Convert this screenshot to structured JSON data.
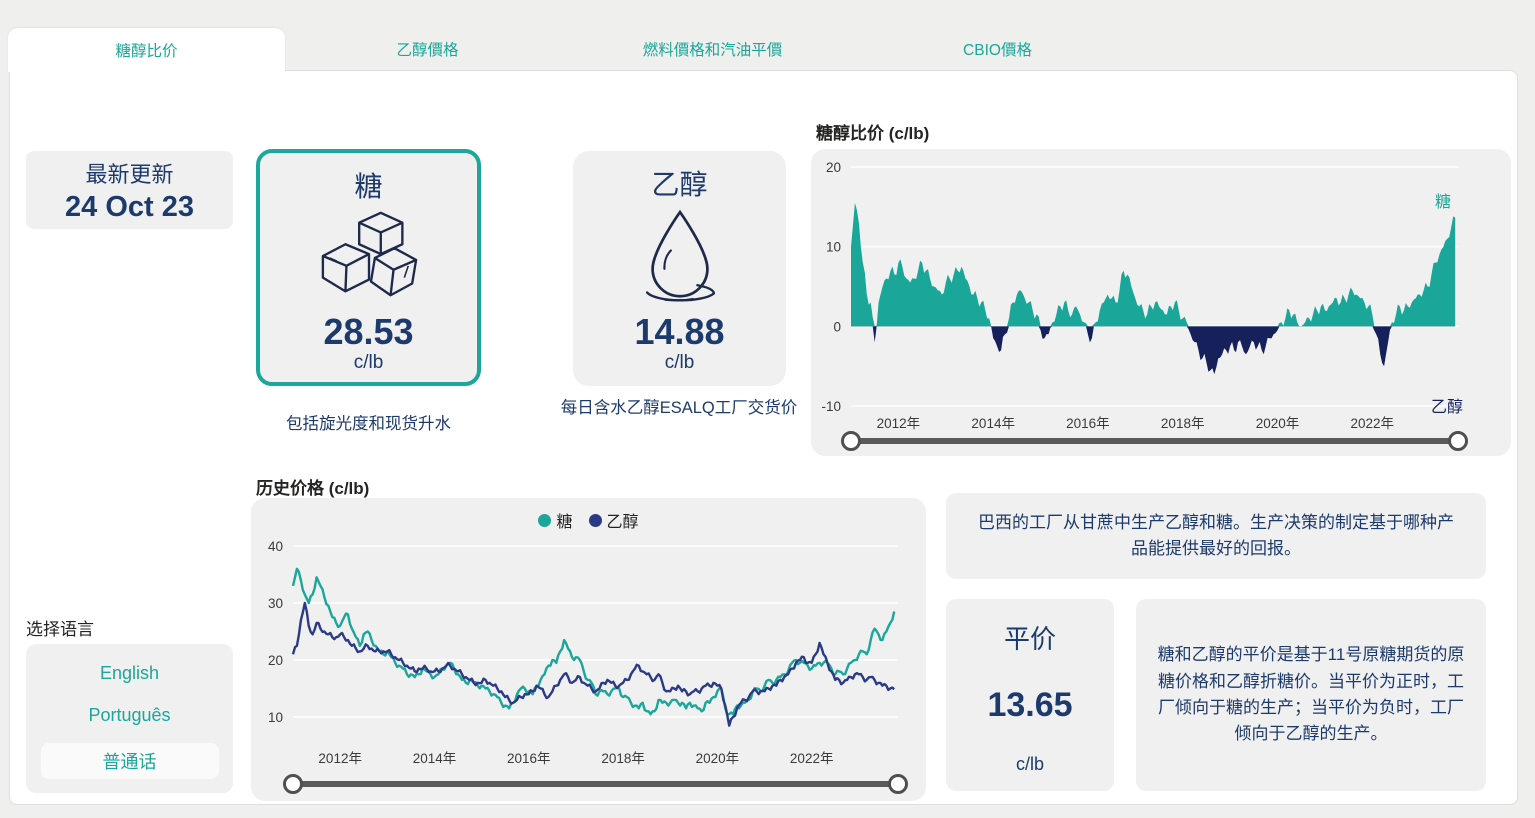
{
  "colors": {
    "teal": "#1AA79A",
    "navy_fill": "#16215C",
    "navy_line": "#2B3A85",
    "text_navy": "#1D3A6D",
    "box_gray": "#F0F0F0"
  },
  "tabs": [
    {
      "label": "糖醇比价",
      "active": true
    },
    {
      "label": "乙醇價格",
      "active": false
    },
    {
      "label": "燃料價格和汽油平價",
      "active": false
    },
    {
      "label": "CBIO價格",
      "active": false
    }
  ],
  "latest_update": {
    "label": "最新更新",
    "date": "24 Oct 23"
  },
  "sugar_card": {
    "title": "糖",
    "value": "28.53",
    "unit": "c/lb",
    "icon": "sugar-cubes-icon",
    "caption": "包括旋光度和现货升水"
  },
  "ethanol_card": {
    "title": "乙醇",
    "value": "14.88",
    "unit": "c/lb",
    "icon": "water-drop-icon",
    "caption": "每日含水乙醇ESALQ工厂交货价"
  },
  "language": {
    "label": "选择语言",
    "options": [
      "English",
      "Português",
      "普通话"
    ],
    "selected": "普通话"
  },
  "info_box_top": "巴西的工厂从甘蔗中生产乙醇和糖。生产决策的制定基于哪种产品能提供最好的回报。",
  "parity_card": {
    "title": "平价",
    "value": "13.65",
    "unit": "c/lb"
  },
  "info_box_bottom": "糖和乙醇的平价是基于11号原糖期货的原糖价格和乙醇折糖价。当平价为正时，工厂倾向于糖的生产；当平价为负时，工厂倾向于乙醇的生产。",
  "chart_data": [
    {
      "type": "area",
      "title": "糖醇比价 (c/lb)",
      "positive_label": "糖",
      "negative_label": "乙醇",
      "positive_color": "#1AA79A",
      "negative_color": "#16215C",
      "frequency": "monthly",
      "x_range": [
        2011.0,
        2023.83
      ],
      "x_ticks": [
        {
          "year": 2012,
          "label": "2012年"
        },
        {
          "year": 2014,
          "label": "2014年"
        },
        {
          "year": 2016,
          "label": "2016年"
        },
        {
          "year": 2018,
          "label": "2018年"
        },
        {
          "year": 2020,
          "label": "2020年"
        },
        {
          "year": 2022,
          "label": "2022年"
        }
      ],
      "y_ticks": [
        20,
        10,
        0,
        -10
      ],
      "ylim": [
        -10,
        20
      ],
      "values": [
        10,
        15.5,
        13,
        8,
        4,
        3,
        -2,
        3,
        5,
        6,
        7,
        6.5,
        8,
        7.5,
        6,
        5.5,
        6,
        7,
        8,
        7,
        6,
        5,
        4.5,
        4,
        5.5,
        6,
        6.5,
        7,
        7.5,
        6,
        5,
        4,
        3.5,
        3,
        2,
        1,
        -1.5,
        -2.5,
        -3,
        -1,
        1,
        3,
        4,
        4.5,
        3.5,
        3,
        2,
        1.5,
        -0.5,
        -1.5,
        -1,
        0.5,
        1.5,
        2.5,
        3,
        2,
        1.5,
        2.5,
        1.5,
        0.5,
        -1,
        -1.5,
        0.5,
        2,
        3,
        4,
        3.5,
        3,
        4.5,
        7,
        6.5,
        5,
        3.5,
        2.5,
        2,
        1.5,
        2.5,
        3,
        2.5,
        2,
        1.5,
        2.5,
        3,
        2,
        1,
        0.5,
        -1,
        -2,
        -3,
        -4,
        -4.5,
        -5.5,
        -6,
        -4,
        -3.5,
        -3,
        -2.5,
        -3,
        -2,
        -2.5,
        -3.5,
        -2.5,
        -2,
        -2.5,
        -3,
        -2.5,
        -1.5,
        -1,
        -0.5,
        0.5,
        1,
        2,
        1.5,
        0.5,
        0,
        0.5,
        1,
        1.5,
        2,
        2.5,
        2,
        2.5,
        3,
        3.5,
        3,
        3.5,
        4,
        4.5,
        4,
        3.5,
        3,
        2.5,
        1.5,
        -1,
        -3.5,
        -5,
        -2,
        0.5,
        1.5,
        2.5,
        2,
        2.5,
        3,
        3.5,
        4,
        4.5,
        5,
        6.5,
        8,
        9,
        10,
        11,
        12.5,
        13.65
      ]
    },
    {
      "type": "line",
      "title": "历史价格 (c/lb)",
      "frequency": "monthly",
      "x_range": [
        2011.0,
        2023.83
      ],
      "x_ticks": [
        {
          "year": 2012,
          "label": "2012年"
        },
        {
          "year": 2014,
          "label": "2014年"
        },
        {
          "year": 2016,
          "label": "2016年"
        },
        {
          "year": 2018,
          "label": "2018年"
        },
        {
          "year": 2020,
          "label": "2020年"
        },
        {
          "year": 2022,
          "label": "2022年"
        }
      ],
      "y_ticks": [
        40,
        30,
        20,
        10
      ],
      "ylim": [
        6,
        43
      ],
      "legend": [
        {
          "label": "糖",
          "color": "#1AA79A"
        },
        {
          "label": "乙醇",
          "color": "#2B3A85"
        }
      ],
      "series": [
        {
          "name": "糖",
          "color": "#1AA79A",
          "values": [
            33,
            36,
            34,
            31.5,
            30,
            31.5,
            34.5,
            33,
            31,
            29.5,
            27.5,
            26.5,
            26,
            27.5,
            28,
            25.5,
            24,
            22.5,
            24.5,
            25,
            23.5,
            22.5,
            21.5,
            21,
            21.5,
            20.5,
            19.5,
            19,
            18.5,
            17.5,
            17.5,
            17,
            17.5,
            18.5,
            18,
            17.5,
            17,
            17.5,
            18.5,
            19,
            19.5,
            18.5,
            17.5,
            16.5,
            16,
            16.5,
            16,
            15.5,
            15.5,
            15,
            14.5,
            14,
            13.5,
            12.5,
            12,
            11.5,
            12.5,
            14,
            15,
            15,
            14.5,
            14,
            15.5,
            16.5,
            17.5,
            19,
            20,
            19.5,
            21.5,
            23.5,
            22,
            20.5,
            20.5,
            20,
            18,
            16.5,
            16,
            14,
            14.5,
            14.5,
            14,
            14.5,
            15,
            15,
            13.5,
            13.5,
            12.5,
            12,
            11.5,
            12.5,
            11,
            10.5,
            11,
            13,
            12.5,
            12.5,
            12.5,
            13,
            12.5,
            12.5,
            11.5,
            12.5,
            12,
            11.5,
            11,
            12.5,
            12.5,
            13.5,
            14.5,
            15,
            11.5,
            10.5,
            10.5,
            12,
            12,
            12.5,
            13,
            14.5,
            15,
            14.5,
            15.5,
            16.5,
            16,
            16.5,
            17,
            17.5,
            18,
            19.5,
            20,
            19.5,
            19.5,
            19,
            18.5,
            19,
            19.5,
            19.5,
            19.5,
            18.5,
            17.5,
            18,
            17.5,
            18.5,
            19.5,
            20,
            21,
            21.5,
            21,
            23.5,
            25.5,
            24.5,
            23.5,
            25,
            26.5,
            28.5
          ]
        },
        {
          "name": "乙醇",
          "color": "#2B3A85",
          "values": [
            21,
            22.5,
            27,
            30,
            26,
            24.5,
            26.5,
            25.5,
            25,
            24.5,
            24,
            24,
            24.5,
            24,
            23.5,
            22.5,
            22,
            21.5,
            22,
            22.5,
            22,
            21.5,
            21.5,
            21.5,
            21.5,
            21,
            20.5,
            20,
            19.5,
            19,
            18.5,
            18,
            18.5,
            18.5,
            18.5,
            18,
            18,
            18,
            18.5,
            19,
            19,
            18.5,
            18,
            17.5,
            17,
            16.5,
            16,
            16,
            16,
            16.5,
            16,
            15.5,
            15,
            14.5,
            13.5,
            13,
            12.5,
            13,
            13.5,
            14,
            14,
            14.5,
            15.5,
            15,
            14,
            13.5,
            14.5,
            15.5,
            16.5,
            17.5,
            17,
            16,
            16.5,
            17,
            16,
            15.5,
            15,
            14.5,
            15,
            16,
            16.5,
            16,
            15.5,
            15.5,
            16,
            16.5,
            17.5,
            18.5,
            19,
            18,
            17.5,
            17,
            16.5,
            17.5,
            16,
            14.5,
            14.5,
            15,
            15.5,
            14.5,
            14.5,
            14,
            14.5,
            14.5,
            15,
            15.5,
            15.5,
            16,
            15.5,
            15,
            12,
            8.5,
            10,
            11.5,
            12.5,
            13,
            13.5,
            14.5,
            14.5,
            14.5,
            14.5,
            15,
            15.5,
            15.5,
            16.5,
            17,
            17.5,
            18.5,
            19.5,
            20,
            20.5,
            19.5,
            19.5,
            21,
            23,
            21,
            19.5,
            18,
            16.5,
            16.5,
            16,
            16.5,
            17,
            17.5,
            17.5,
            17,
            16.5,
            17,
            16.5,
            16,
            15.5,
            15.5,
            15,
            14.88
          ]
        }
      ]
    }
  ]
}
